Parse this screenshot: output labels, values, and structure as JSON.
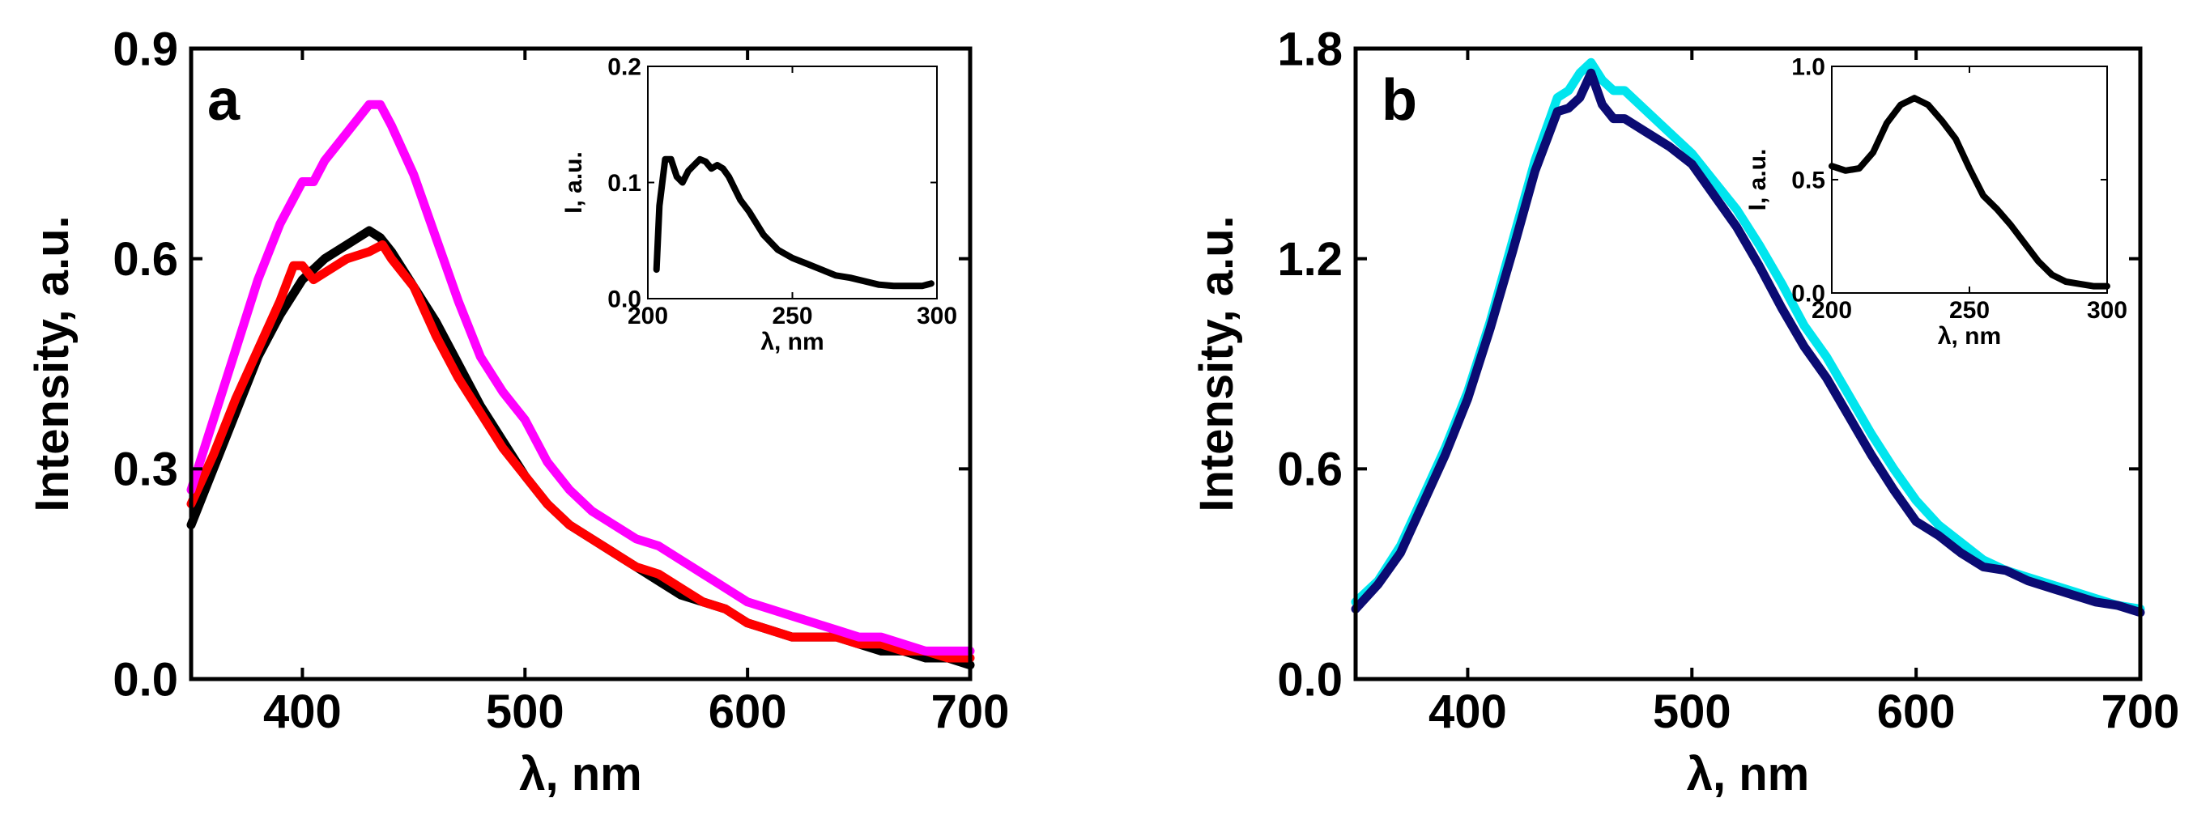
{
  "chart_data": [
    {
      "type": "line",
      "panel_label": "a",
      "xlabel": "λ, nm",
      "ylabel": "Intensity, a.u.",
      "xlim": [
        350,
        700
      ],
      "ylim": [
        0,
        0.9
      ],
      "xticks": [
        400,
        500,
        600,
        700
      ],
      "yticks": [
        0.0,
        0.3,
        0.6,
        0.9
      ],
      "xtick_labels": [
        "400",
        "500",
        "600",
        "700"
      ],
      "ytick_labels": [
        "0.0",
        "0.3",
        "0.6",
        "0.9"
      ],
      "series": [
        {
          "name": "black",
          "color": "#000000",
          "x": [
            350,
            360,
            370,
            380,
            390,
            400,
            410,
            420,
            430,
            435,
            440,
            450,
            460,
            470,
            480,
            490,
            500,
            510,
            520,
            530,
            540,
            550,
            560,
            570,
            580,
            590,
            600,
            610,
            620,
            630,
            640,
            650,
            660,
            670,
            680,
            690,
            700
          ],
          "y": [
            0.22,
            0.3,
            0.38,
            0.46,
            0.52,
            0.57,
            0.6,
            0.62,
            0.64,
            0.63,
            0.61,
            0.56,
            0.51,
            0.45,
            0.39,
            0.34,
            0.29,
            0.25,
            0.22,
            0.2,
            0.18,
            0.16,
            0.14,
            0.12,
            0.11,
            0.1,
            0.08,
            0.07,
            0.06,
            0.06,
            0.06,
            0.05,
            0.04,
            0.04,
            0.03,
            0.03,
            0.02
          ]
        },
        {
          "name": "red",
          "color": "#ff0000",
          "x": [
            350,
            360,
            370,
            380,
            390,
            396,
            400,
            405,
            410,
            420,
            430,
            436,
            440,
            450,
            460,
            470,
            480,
            490,
            500,
            510,
            520,
            530,
            540,
            550,
            560,
            570,
            580,
            590,
            600,
            610,
            620,
            630,
            640,
            650,
            660,
            670,
            680,
            690,
            700
          ],
          "y": [
            0.25,
            0.32,
            0.4,
            0.47,
            0.54,
            0.59,
            0.59,
            0.57,
            0.58,
            0.6,
            0.61,
            0.62,
            0.6,
            0.56,
            0.49,
            0.43,
            0.38,
            0.33,
            0.29,
            0.25,
            0.22,
            0.2,
            0.18,
            0.16,
            0.15,
            0.13,
            0.11,
            0.1,
            0.08,
            0.07,
            0.06,
            0.06,
            0.06,
            0.05,
            0.05,
            0.04,
            0.04,
            0.03,
            0.03
          ]
        },
        {
          "name": "magenta",
          "color": "#ff00ff",
          "x": [
            350,
            360,
            370,
            380,
            390,
            400,
            405,
            410,
            420,
            430,
            435,
            440,
            450,
            460,
            470,
            480,
            490,
            500,
            510,
            520,
            530,
            540,
            550,
            560,
            570,
            580,
            590,
            600,
            610,
            620,
            630,
            640,
            650,
            660,
            670,
            680,
            690,
            700
          ],
          "y": [
            0.27,
            0.37,
            0.47,
            0.57,
            0.65,
            0.71,
            0.71,
            0.74,
            0.78,
            0.82,
            0.82,
            0.79,
            0.72,
            0.63,
            0.54,
            0.46,
            0.41,
            0.37,
            0.31,
            0.27,
            0.24,
            0.22,
            0.2,
            0.19,
            0.17,
            0.15,
            0.13,
            0.11,
            0.1,
            0.09,
            0.08,
            0.07,
            0.06,
            0.06,
            0.05,
            0.04,
            0.04,
            0.04
          ]
        }
      ],
      "inset": {
        "xlabel": "λ, nm",
        "ylabel": "I, a.u.",
        "xlim": [
          200,
          300
        ],
        "ylim": [
          0,
          0.2
        ],
        "xticks": [
          200,
          250,
          300
        ],
        "yticks": [
          0.0,
          0.1,
          0.2
        ],
        "xtick_labels": [
          "200",
          "250",
          "300"
        ],
        "ytick_labels": [
          "0.0",
          "0.1",
          "0.2"
        ],
        "series": [
          {
            "name": "inset",
            "color": "#000000",
            "x": [
              203,
              204,
              206,
              208,
              210,
              212,
              214,
              216,
              218,
              220,
              222,
              224,
              226,
              228,
              230,
              232,
              235,
              240,
              245,
              250,
              255,
              260,
              265,
              270,
              275,
              280,
              285,
              290,
              295,
              298
            ],
            "y": [
              0.025,
              0.08,
              0.12,
              0.12,
              0.105,
              0.1,
              0.11,
              0.115,
              0.12,
              0.118,
              0.112,
              0.115,
              0.112,
              0.105,
              0.095,
              0.085,
              0.075,
              0.055,
              0.042,
              0.035,
              0.03,
              0.025,
              0.02,
              0.018,
              0.015,
              0.012,
              0.011,
              0.011,
              0.011,
              0.013
            ]
          }
        ]
      }
    },
    {
      "type": "line",
      "panel_label": "b",
      "xlabel": "λ, nm",
      "ylabel": "Intensity, a.u.",
      "xlim": [
        350,
        700
      ],
      "ylim": [
        0,
        1.8
      ],
      "xticks": [
        400,
        500,
        600,
        700
      ],
      "yticks": [
        0.0,
        0.6,
        1.2,
        1.8
      ],
      "xtick_labels": [
        "400",
        "500",
        "600",
        "700"
      ],
      "ytick_labels": [
        "0.0",
        "0.6",
        "1.2",
        "1.8"
      ],
      "series": [
        {
          "name": "cyan",
          "color": "#00e5ee",
          "x": [
            350,
            360,
            370,
            380,
            390,
            400,
            410,
            420,
            430,
            440,
            445,
            450,
            455,
            460,
            465,
            470,
            480,
            490,
            500,
            510,
            520,
            530,
            540,
            550,
            560,
            570,
            580,
            590,
            600,
            610,
            620,
            630,
            640,
            650,
            660,
            670,
            680,
            690,
            700
          ],
          "y": [
            0.22,
            0.28,
            0.38,
            0.52,
            0.66,
            0.82,
            1.02,
            1.25,
            1.48,
            1.66,
            1.68,
            1.73,
            1.76,
            1.71,
            1.68,
            1.68,
            1.62,
            1.56,
            1.5,
            1.42,
            1.34,
            1.24,
            1.13,
            1.01,
            0.92,
            0.81,
            0.7,
            0.6,
            0.51,
            0.44,
            0.39,
            0.34,
            0.31,
            0.29,
            0.27,
            0.25,
            0.23,
            0.21,
            0.2
          ]
        },
        {
          "name": "navy",
          "color": "#0b0b73",
          "x": [
            350,
            360,
            370,
            380,
            390,
            400,
            410,
            420,
            430,
            440,
            445,
            450,
            455,
            460,
            465,
            470,
            480,
            490,
            500,
            510,
            520,
            530,
            540,
            550,
            560,
            570,
            580,
            590,
            600,
            610,
            620,
            630,
            640,
            650,
            660,
            670,
            680,
            690,
            700
          ],
          "y": [
            0.2,
            0.27,
            0.36,
            0.5,
            0.64,
            0.8,
            1.0,
            1.22,
            1.45,
            1.62,
            1.63,
            1.66,
            1.73,
            1.64,
            1.6,
            1.6,
            1.56,
            1.52,
            1.47,
            1.38,
            1.29,
            1.18,
            1.06,
            0.95,
            0.86,
            0.75,
            0.64,
            0.54,
            0.45,
            0.41,
            0.36,
            0.32,
            0.31,
            0.28,
            0.26,
            0.24,
            0.22,
            0.21,
            0.19
          ]
        }
      ],
      "inset": {
        "xlabel": "λ, nm",
        "ylabel": "I, a.u.",
        "xlim": [
          200,
          300
        ],
        "ylim": [
          0,
          1.0
        ],
        "xticks": [
          200,
          250,
          300
        ],
        "yticks": [
          0.0,
          0.5,
          1.0
        ],
        "xtick_labels": [
          "200",
          "250",
          "300"
        ],
        "ytick_labels": [
          "0.0",
          "0.5",
          "1.0"
        ],
        "series": [
          {
            "name": "inset",
            "color": "#000000",
            "x": [
              200,
              205,
              210,
              215,
              220,
              225,
              230,
              235,
              240,
              245,
              250,
              255,
              260,
              265,
              270,
              275,
              280,
              285,
              290,
              295,
              300
            ],
            "y": [
              0.56,
              0.54,
              0.55,
              0.62,
              0.75,
              0.83,
              0.86,
              0.83,
              0.76,
              0.68,
              0.55,
              0.43,
              0.37,
              0.3,
              0.22,
              0.14,
              0.08,
              0.05,
              0.04,
              0.03,
              0.03
            ]
          }
        ]
      }
    }
  ]
}
